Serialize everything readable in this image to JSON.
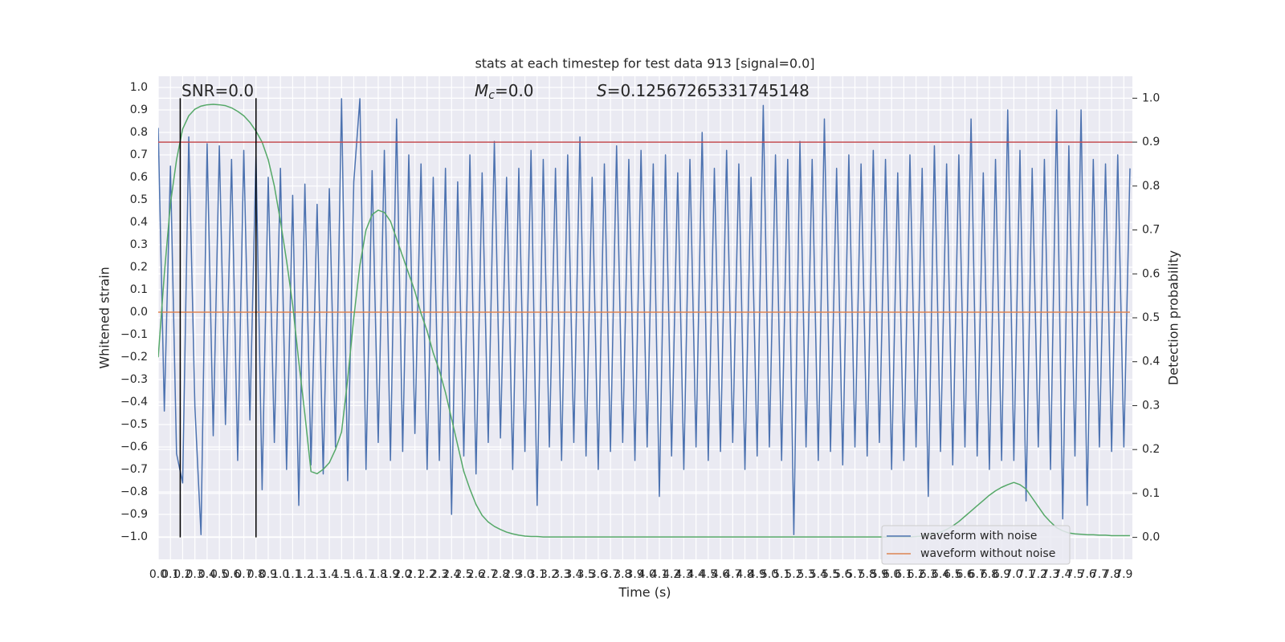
{
  "chart_data": {
    "type": "line",
    "title": "stats at each timestep for test data 913 [signal=0.0]",
    "x_label": "Time (s)",
    "y_label": "Whitened strain",
    "y2_label": "Detection probability",
    "annotations": [
      {
        "text": "SNR=0.0"
      },
      {
        "symbol": "M",
        "subscript": "c",
        "text": "=0.0"
      },
      {
        "symbol": "S",
        "text": "=0.12567265331745148"
      }
    ],
    "grid": true,
    "legend": "lower right",
    "xlim": [
      0,
      7.97
    ],
    "ylim": [
      -1.1,
      1.05
    ],
    "y2lim": [
      -0.05,
      1.05
    ],
    "xticks": [
      {
        "value": 0,
        "label": "0.0"
      },
      0.1,
      0.2,
      0.3,
      0.4,
      0.5,
      0.6,
      0.7,
      0.8,
      0.9,
      {
        "value": 1,
        "label": "1.0"
      },
      1.1,
      1.2,
      1.3,
      1.4,
      1.5,
      1.6,
      1.7,
      1.8,
      1.9,
      {
        "value": 2,
        "label": "2.0"
      },
      2.1,
      2.2,
      2.3,
      2.4,
      2.5,
      2.6,
      2.7,
      2.8,
      2.9,
      {
        "value": 3,
        "label": "3.0"
      },
      3.1,
      3.2,
      3.3,
      3.4,
      3.5,
      3.6,
      3.7,
      3.8,
      3.9,
      {
        "value": 4,
        "label": "4.0"
      },
      4.1,
      4.2,
      4.3,
      4.4,
      4.5,
      4.6,
      4.7,
      4.8,
      4.9,
      {
        "value": 5,
        "label": "5.0"
      },
      5.1,
      5.2,
      5.3,
      5.4,
      5.5,
      5.6,
      5.7,
      5.8,
      5.9,
      {
        "value": 6,
        "label": "6.0"
      },
      6.1,
      6.2,
      6.3,
      6.4,
      6.5,
      6.6,
      6.7,
      6.8,
      6.9,
      {
        "value": 7,
        "label": "7.0"
      },
      7.1,
      7.2,
      7.3,
      7.4,
      7.5,
      7.6,
      7.7,
      7.8,
      7.9
    ],
    "yticks": [
      {
        "value": -1,
        "label": "−1.0"
      },
      {
        "value": -0.9,
        "label": "−0.9"
      },
      {
        "value": -0.8,
        "label": "−0.8"
      },
      {
        "value": -0.7,
        "label": "−0.7"
      },
      {
        "value": -0.6,
        "label": "−0.6"
      },
      {
        "value": -0.5,
        "label": "−0.5"
      },
      {
        "value": -0.4,
        "label": "−0.4"
      },
      {
        "value": -0.3,
        "label": "−0.3"
      },
      {
        "value": -0.2,
        "label": "−0.2"
      },
      {
        "value": -0.1,
        "label": "−0.1"
      },
      {
        "value": 0,
        "label": "0.0"
      },
      0.1,
      0.2,
      0.3,
      0.4,
      0.5,
      0.6,
      0.7,
      0.8,
      0.9,
      {
        "value": 1,
        "label": "1.0"
      }
    ],
    "y2ticks": [
      {
        "value": 0,
        "label": "0.0"
      },
      0.1,
      0.2,
      0.3,
      0.4,
      0.5,
      0.6,
      0.7,
      0.8,
      0.9,
      {
        "value": 1,
        "label": "1.0"
      }
    ],
    "x": [
      0,
      0.05,
      0.1,
      0.15,
      0.2,
      0.25,
      0.3,
      0.35,
      0.4,
      0.45,
      0.5,
      0.55,
      0.6,
      0.65,
      0.7,
      0.75,
      0.8,
      0.85,
      0.9,
      0.95,
      1,
      1.05,
      1.1,
      1.15,
      1.2,
      1.25,
      1.3,
      1.35,
      1.4,
      1.45,
      1.5,
      1.55,
      1.6,
      1.65,
      1.7,
      1.75,
      1.8,
      1.85,
      1.9,
      1.95,
      2,
      2.05,
      2.1,
      2.15,
      2.2,
      2.25,
      2.3,
      2.35,
      2.4,
      2.45,
      2.5,
      2.55,
      2.6,
      2.65,
      2.7,
      2.75,
      2.8,
      2.85,
      2.9,
      2.95,
      3,
      3.05,
      3.1,
      3.15,
      3.2,
      3.25,
      3.3,
      3.35,
      3.4,
      3.45,
      3.5,
      3.55,
      3.6,
      3.65,
      3.7,
      3.75,
      3.8,
      3.85,
      3.9,
      3.95,
      4,
      4.05,
      4.1,
      4.15,
      4.2,
      4.25,
      4.3,
      4.35,
      4.4,
      4.45,
      4.5,
      4.55,
      4.6,
      4.65,
      4.7,
      4.75,
      4.8,
      4.85,
      4.9,
      4.95,
      5,
      5.05,
      5.1,
      5.15,
      5.2,
      5.25,
      5.3,
      5.35,
      5.4,
      5.45,
      5.5,
      5.55,
      5.6,
      5.65,
      5.7,
      5.75,
      5.8,
      5.85,
      5.9,
      5.95,
      6,
      6.05,
      6.1,
      6.15,
      6.2,
      6.25,
      6.3,
      6.35,
      6.4,
      6.45,
      6.5,
      6.55,
      6.6,
      6.65,
      6.7,
      6.75,
      6.8,
      6.85,
      6.9,
      6.95,
      7,
      7.05,
      7.1,
      7.15,
      7.2,
      7.25,
      7.3,
      7.35,
      7.4,
      7.45,
      7.5,
      7.55,
      7.6,
      7.65,
      7.7,
      7.75,
      7.8,
      7.85,
      7.9,
      7.95
    ],
    "series": [
      {
        "name": "waveform with noise",
        "color": "#4c72b0",
        "axis": "y",
        "values": [
          0.82,
          -0.44,
          0.65,
          -0.63,
          -0.76,
          0.78,
          -0.42,
          -0.99,
          0.75,
          -0.55,
          0.74,
          -0.5,
          0.68,
          -0.66,
          0.72,
          -0.48,
          0.7,
          -0.79,
          0.6,
          -0.58,
          0.64,
          -0.7,
          0.52,
          -0.86,
          0.57,
          -0.68,
          0.48,
          -0.72,
          0.55,
          -0.6,
          0.95,
          -0.75,
          0.58,
          0.95,
          -0.7,
          0.63,
          -0.58,
          0.72,
          -0.66,
          0.86,
          -0.62,
          0.7,
          -0.54,
          0.66,
          -0.7,
          0.6,
          -0.66,
          0.64,
          -0.9,
          0.58,
          -0.64,
          0.7,
          -0.72,
          0.62,
          -0.58,
          0.76,
          -0.56,
          0.6,
          -0.7,
          0.64,
          -0.62,
          0.72,
          -0.86,
          0.68,
          -0.6,
          0.64,
          -0.66,
          0.7,
          -0.58,
          0.78,
          -0.64,
          0.6,
          -0.7,
          0.66,
          -0.62,
          0.74,
          -0.58,
          0.68,
          -0.66,
          0.72,
          -0.6,
          0.66,
          -0.82,
          0.7,
          -0.64,
          0.62,
          -0.7,
          0.68,
          -0.6,
          0.8,
          -0.66,
          0.64,
          -0.62,
          0.72,
          -0.58,
          0.66,
          -0.7,
          0.6,
          -0.64,
          0.92,
          -0.6,
          0.7,
          -0.66,
          0.68,
          -0.99,
          0.76,
          -0.6,
          0.68,
          -0.66,
          0.86,
          -0.62,
          0.64,
          -0.68,
          0.7,
          -0.6,
          0.66,
          -0.64,
          0.72,
          -0.58,
          0.68,
          -0.7,
          0.62,
          -0.66,
          0.7,
          -0.6,
          0.64,
          -0.82,
          0.74,
          -0.62,
          0.66,
          -0.68,
          0.7,
          -0.6,
          0.86,
          -0.64,
          0.62,
          -0.7,
          0.68,
          -0.66,
          0.9,
          -0.66,
          0.72,
          -0.84,
          0.64,
          -0.6,
          0.68,
          -0.7,
          0.9,
          -0.92,
          0.74,
          -0.64,
          0.9,
          -0.86,
          0.68,
          -0.6,
          0.66,
          -0.62,
          0.7,
          -0.6,
          0.64
        ]
      },
      {
        "name": "waveform without noise",
        "color": "#dd8452",
        "axis": "y",
        "x": [
          0,
          7.95
        ],
        "values": [
          0,
          0
        ]
      },
      {
        "color": "#55a868",
        "axis": "y2",
        "values": [
          0.41,
          0.6,
          0.76,
          0.86,
          0.93,
          0.96,
          0.975,
          0.982,
          0.985,
          0.986,
          0.985,
          0.983,
          0.978,
          0.97,
          0.96,
          0.945,
          0.925,
          0.9,
          0.86,
          0.8,
          0.72,
          0.63,
          0.53,
          0.4,
          0.28,
          0.15,
          0.145,
          0.155,
          0.17,
          0.2,
          0.24,
          0.36,
          0.5,
          0.62,
          0.7,
          0.735,
          0.745,
          0.74,
          0.72,
          0.68,
          0.64,
          0.6,
          0.56,
          0.51,
          0.47,
          0.42,
          0.38,
          0.33,
          0.27,
          0.21,
          0.15,
          0.11,
          0.075,
          0.05,
          0.035,
          0.025,
          0.018,
          0.012,
          0.008,
          0.005,
          0.003,
          0.002,
          0.002,
          0.001,
          0.001,
          0.001,
          0.001,
          0.001,
          0.001,
          0.001,
          0.001,
          0.001,
          0.001,
          0.001,
          0.001,
          0.001,
          0.001,
          0.001,
          0.001,
          0.001,
          0.001,
          0.001,
          0.001,
          0.001,
          0.001,
          0.001,
          0.001,
          0.001,
          0.001,
          0.001,
          0.001,
          0.001,
          0.001,
          0.001,
          0.001,
          0.001,
          0.001,
          0.001,
          0.001,
          0.001,
          0.001,
          0.001,
          0.001,
          0.001,
          0.001,
          0.001,
          0.001,
          0.001,
          0.001,
          0.001,
          0.001,
          0.001,
          0.001,
          0.001,
          0.001,
          0.001,
          0.001,
          0.001,
          0.001,
          0.001,
          0.001,
          0.001,
          0.001,
          0.001,
          0.002,
          0.003,
          0.005,
          0.008,
          0.012,
          0.018,
          0.026,
          0.036,
          0.048,
          0.06,
          0.072,
          0.084,
          0.096,
          0.106,
          0.114,
          0.12,
          0.125,
          0.12,
          0.11,
          0.09,
          0.07,
          0.05,
          0.035,
          0.022,
          0.015,
          0.01,
          0.008,
          0.007,
          0.006,
          0.006,
          0.005,
          0.005,
          0.004,
          0.004,
          0.004,
          0.004
        ]
      }
    ],
    "hlines": [
      {
        "value": 0.9,
        "axis": "y2",
        "color": "#c44e52"
      }
    ],
    "vlines": [
      {
        "x": 0.18,
        "axis": "y2",
        "from": 0,
        "to": 1,
        "color": "#000000"
      },
      {
        "x": 0.8,
        "axis": "y2",
        "from": 0,
        "to": 1,
        "color": "#000000"
      }
    ]
  }
}
